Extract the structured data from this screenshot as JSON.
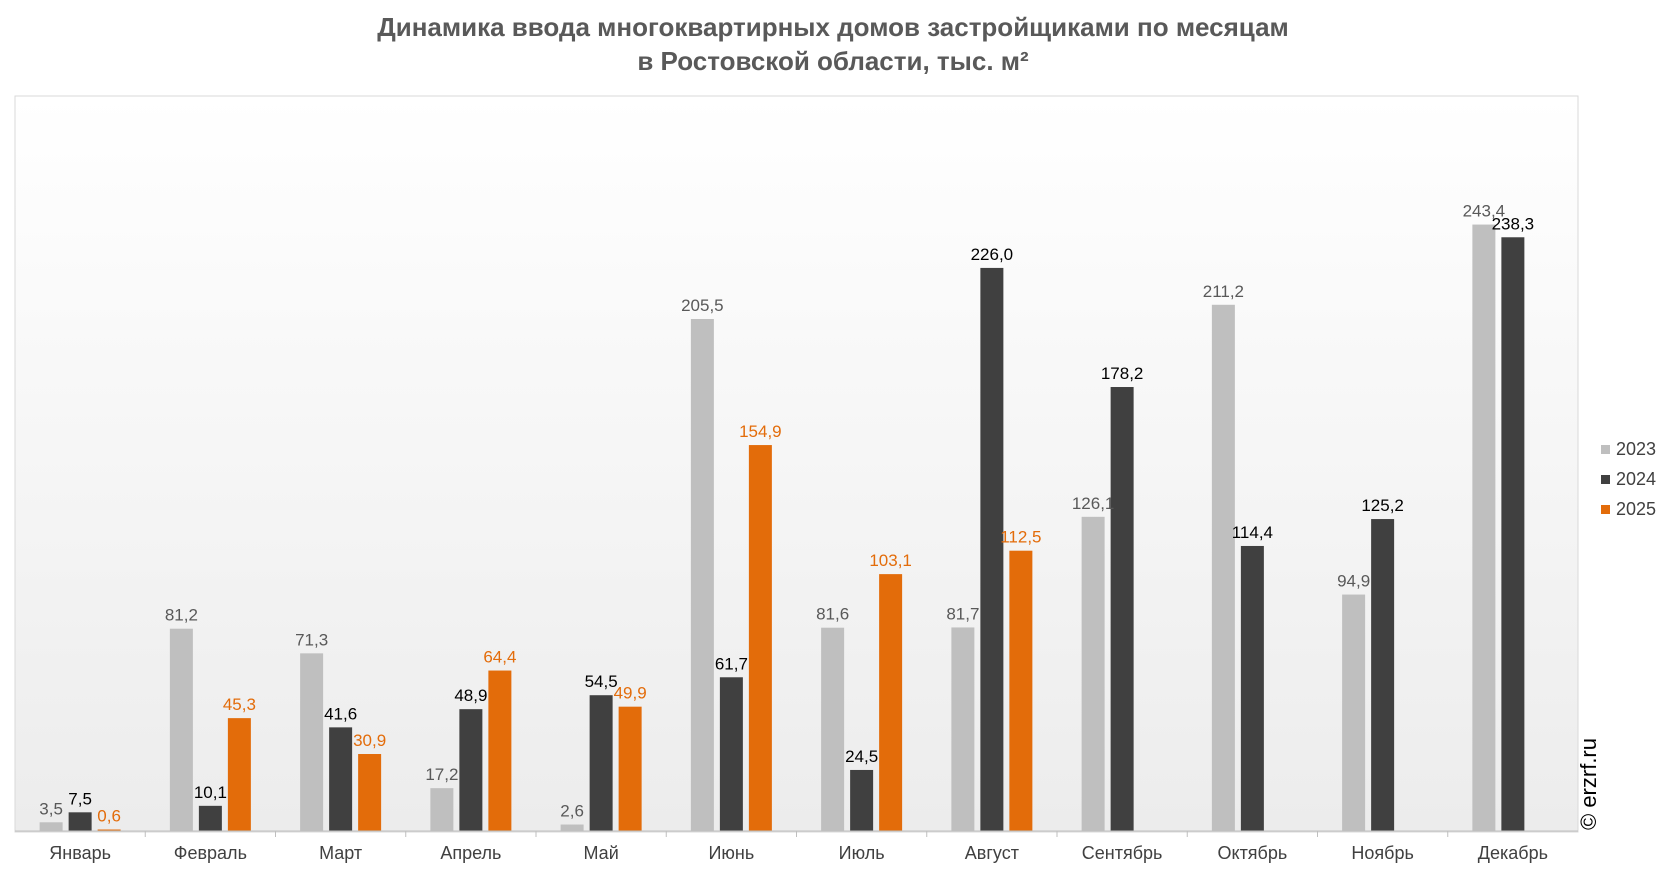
{
  "title": {
    "line1": "Динамика ввода многоквартирных домов застройщиками по месяцам",
    "line2": "в Ростовской области, тыс. м²"
  },
  "watermark": "© erzrf.ru",
  "chart_data": {
    "type": "bar",
    "title": "Динамика ввода многоквартирных домов застройщиками по месяцам в Ростовской области, тыс. м²",
    "categories": [
      "Январь",
      "Февраль",
      "Март",
      "Апрель",
      "Май",
      "Июнь",
      "Июль",
      "Август",
      "Сентябрь",
      "Октябрь",
      "Ноябрь",
      "Декабрь"
    ],
    "series": [
      {
        "name": "2023",
        "color": "#bfbfbf",
        "label_color": "#595959",
        "values": [
          3.5,
          81.2,
          71.3,
          17.2,
          2.6,
          205.5,
          81.6,
          81.7,
          126.1,
          211.2,
          94.9,
          243.4
        ],
        "labels": [
          "3,5",
          "81,2",
          "71,3",
          "17,2",
          "2,6",
          "205,5",
          "81,6",
          "81,7",
          "126,1",
          "211,2",
          "94,9",
          "243,4"
        ]
      },
      {
        "name": "2024",
        "color": "#404040",
        "label_color": "#000000",
        "values": [
          7.5,
          10.1,
          41.6,
          48.9,
          54.5,
          61.7,
          24.5,
          226.0,
          178.2,
          114.4,
          125.2,
          238.3
        ],
        "labels": [
          "7,5",
          "10,1",
          "41,6",
          "48,9",
          "54,5",
          "61,7",
          "24,5",
          "226,0",
          "178,2",
          "114,4",
          "125,2",
          "238,3"
        ]
      },
      {
        "name": "2025",
        "color": "#e36c0a",
        "label_color": "#e36c0a",
        "values": [
          0.6,
          45.3,
          30.9,
          64.4,
          49.9,
          154.9,
          103.1,
          112.5,
          null,
          null,
          null,
          null
        ],
        "labels": [
          "0,6",
          "45,3",
          "30,9",
          "64,4",
          "49,9",
          "154,9",
          "103,1",
          "112,5",
          null,
          null,
          null,
          null
        ]
      }
    ],
    "ylim": [
      0,
      295
    ],
    "legend_position": "right",
    "grid": false,
    "xlabel": "",
    "ylabel": ""
  }
}
